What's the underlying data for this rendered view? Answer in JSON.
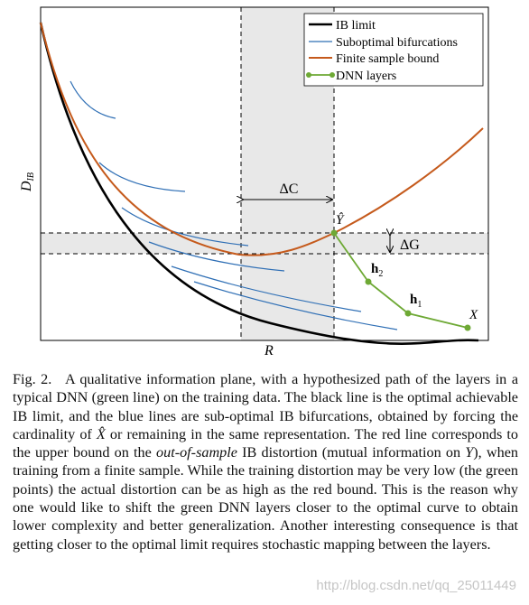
{
  "figure": {
    "legend": [
      "IB limit",
      "Suboptimal bifurcations",
      "Finite sample bound",
      "DNN layers"
    ],
    "y_label": {
      "main": "D",
      "sub": "IB"
    },
    "x_label": "R",
    "annotations": {
      "delta_c": "ΔC",
      "delta_g": "ΔG",
      "y_hat": "Ŷ",
      "h2": {
        "main": "h",
        "sub": "2"
      },
      "h1": {
        "main": "h",
        "sub": "1"
      },
      "x": "X"
    }
  },
  "caption": {
    "label": "Fig. 2.",
    "segments": [
      "A qualitative information plane, with a hypothesized path of the layers in a typical DNN (green line) on the training data. The black line is the optimal achievable IB limit, and the blue lines are sub-optimal IB bifurcations, obtained by forcing the cardinality of ",
      "X̂",
      " or remaining in the same representation. The red line corresponds to the upper bound on the ",
      "out-of-sample",
      " IB distortion (mutual information on ",
      "Y",
      "), when training from a finite sample. While the training distortion may be very low (the green points) the actual distortion can be as high as the red bound. This is the reason why one would like to shift the green DNN layers closer to the optimal curve to obtain lower complexity and better generalization. Another interesting consequence is that getting closer to the optimal limit requires stochastic mapping between the layers."
    ]
  },
  "watermark": "http://blog.csdn.net/qq_25011449"
}
